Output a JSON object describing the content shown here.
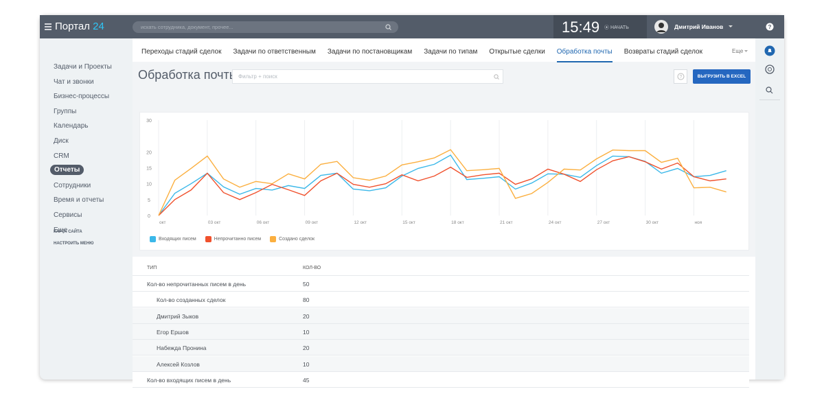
{
  "header": {
    "logo": "Портал",
    "logo_number": "24",
    "search_placeholder": "искать сотрудника, документ, прочее...",
    "time": "15:49",
    "start_button": "НАЧАТЬ",
    "user": "Дмитрий Иванов"
  },
  "sidebar": {
    "items": [
      "Задачи и Проекты",
      "Чат и звонки",
      "Бизнес-процессы",
      "Группы",
      "Календарь",
      "Диск",
      "CRM",
      "Отчеты",
      "Сотрудники",
      "Время и отчеты",
      "Сервисы",
      "Еще"
    ],
    "active": 7,
    "links": [
      "КАРТА САЙТА",
      "НАСТРОИТЬ МЕНЮ"
    ]
  },
  "tabs": {
    "items": [
      "Переходы стадий сделок",
      "Задачи по ответственным",
      "Задачи по постановщикам",
      "Задачи по типам",
      "Открытые сделки",
      "Обработка почты",
      "Возвраты стадий сделок"
    ],
    "active": 5,
    "more": "Еще"
  },
  "page": {
    "title": "Обработка почты",
    "filter_placeholder": "Фильтр + поиск",
    "export_button": "ВЫГРУЗИТЬ В EXCEL"
  },
  "chart_data": {
    "type": "line",
    "categories": [
      "окт",
      null,
      null,
      "03 окт",
      null,
      null,
      "06 окт",
      null,
      null,
      "09 окт",
      null,
      null,
      "12 окт",
      null,
      null,
      "15 окт",
      null,
      null,
      "18 окт",
      null,
      null,
      "21 окт",
      null,
      null,
      "24 окт",
      null,
      null,
      "27 окт",
      null,
      null,
      "30 окт",
      null,
      null,
      "ноя",
      null,
      null
    ],
    "series": [
      {
        "name": "Входящих писем",
        "color": "#3bb8e9",
        "values": [
          0,
          7,
          10,
          13.3,
          9,
          6.7,
          8.5,
          8,
          9.4,
          8.5,
          12.6,
          13.3,
          8.3,
          7.8,
          8.7,
          12.4,
          14.8,
          16.1,
          19,
          11.3,
          11.7,
          12.2,
          8.3,
          10.2,
          13.1,
          13,
          12,
          15.7,
          18.7,
          18.5,
          17,
          13.3,
          14.8,
          12.2,
          12.6,
          14.1
        ]
      },
      {
        "name": "Непрочитанно писем",
        "color": "#f0512d",
        "values": [
          0,
          5,
          8,
          13.3,
          7.2,
          5,
          7.2,
          9.8,
          8.1,
          6.3,
          10.9,
          13.3,
          9.8,
          8.9,
          10,
          12.8,
          10.9,
          12.4,
          15.2,
          12,
          12.8,
          13.3,
          9.8,
          11.5,
          14.6,
          13,
          10.7,
          14.4,
          17.2,
          18.5,
          16.9,
          14.6,
          16.5,
          12.2,
          10.9,
          11.5
        ]
      },
      {
        "name": "Создано сделок",
        "color": "#fbaf3f",
        "values": [
          0,
          11.1,
          14.8,
          18.7,
          11.5,
          8.9,
          10.7,
          10,
          13.1,
          11.5,
          16.1,
          17,
          11.9,
          11.1,
          12.4,
          15.9,
          16.9,
          18.1,
          20.7,
          14.1,
          14.4,
          14.8,
          5.4,
          6.9,
          10.4,
          14.6,
          14.3,
          17.8,
          20.6,
          20.4,
          20.4,
          16.7,
          18,
          8.7,
          8.9,
          7.4
        ]
      }
    ],
    "ylim": [
      0,
      30
    ],
    "yticks": [
      0,
      5,
      10,
      15,
      20,
      30
    ],
    "grid": true
  },
  "table": {
    "columns": [
      "ТИП",
      "КОЛ-ВО"
    ],
    "rows": [
      {
        "label": "Кол-во непрочитанных писем в день",
        "value": 50,
        "level": 0
      },
      {
        "label": "Кол-во созданных сделок",
        "value": 80,
        "level": 0,
        "expanded": true
      },
      {
        "label": "Дмитрий Зыков",
        "value": 20,
        "level": 1
      },
      {
        "label": "Егор Ершов",
        "value": 10,
        "level": 1
      },
      {
        "label": "Набежда Пронина",
        "value": 20,
        "level": 1
      },
      {
        "label": "Алексей Козлов",
        "value": 10,
        "level": 1
      },
      {
        "label": "Кол-во входящих писем в день",
        "value": 45,
        "level": 0
      }
    ]
  }
}
